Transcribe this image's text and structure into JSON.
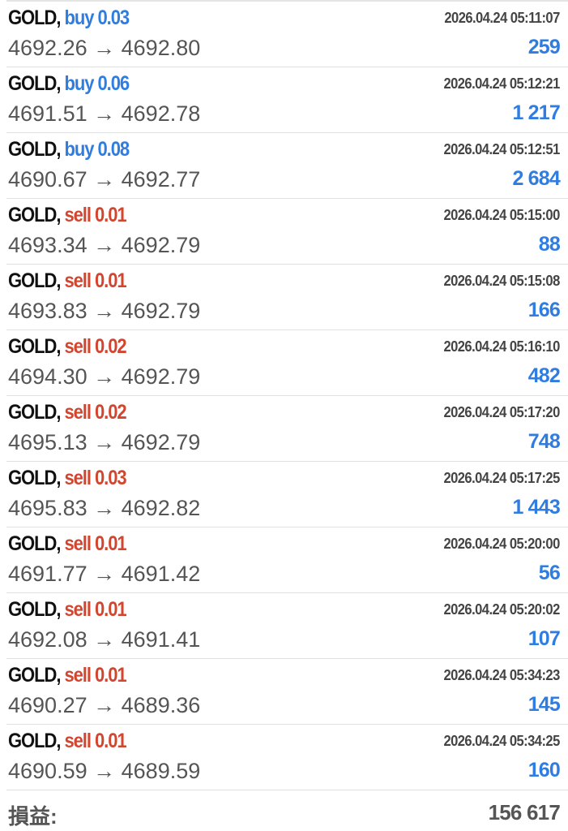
{
  "colors": {
    "buy": "#2f7de1",
    "sell": "#d2452f",
    "profit": "#2f7de1"
  },
  "trades": [
    {
      "symbol": "GOLD,",
      "type": "buy",
      "volume": "0.03",
      "time": "2026.04.24 05:11:07",
      "open": "4692.26",
      "close": "4692.80",
      "profit": "259"
    },
    {
      "symbol": "GOLD,",
      "type": "buy",
      "volume": "0.06",
      "time": "2026.04.24 05:12:21",
      "open": "4691.51",
      "close": "4692.78",
      "profit": "1 217"
    },
    {
      "symbol": "GOLD,",
      "type": "buy",
      "volume": "0.08",
      "time": "2026.04.24 05:12:51",
      "open": "4690.67",
      "close": "4692.77",
      "profit": "2 684"
    },
    {
      "symbol": "GOLD,",
      "type": "sell",
      "volume": "0.01",
      "time": "2026.04.24 05:15:00",
      "open": "4693.34",
      "close": "4692.79",
      "profit": "88"
    },
    {
      "symbol": "GOLD,",
      "type": "sell",
      "volume": "0.01",
      "time": "2026.04.24 05:15:08",
      "open": "4693.83",
      "close": "4692.79",
      "profit": "166"
    },
    {
      "symbol": "GOLD,",
      "type": "sell",
      "volume": "0.02",
      "time": "2026.04.24 05:16:10",
      "open": "4694.30",
      "close": "4692.79",
      "profit": "482"
    },
    {
      "symbol": "GOLD,",
      "type": "sell",
      "volume": "0.02",
      "time": "2026.04.24 05:17:20",
      "open": "4695.13",
      "close": "4692.79",
      "profit": "748"
    },
    {
      "symbol": "GOLD,",
      "type": "sell",
      "volume": "0.03",
      "time": "2026.04.24 05:17:25",
      "open": "4695.83",
      "close": "4692.82",
      "profit": "1 443"
    },
    {
      "symbol": "GOLD,",
      "type": "sell",
      "volume": "0.01",
      "time": "2026.04.24 05:20:00",
      "open": "4691.77",
      "close": "4691.42",
      "profit": "56"
    },
    {
      "symbol": "GOLD,",
      "type": "sell",
      "volume": "0.01",
      "time": "2026.04.24 05:20:02",
      "open": "4692.08",
      "close": "4691.41",
      "profit": "107"
    },
    {
      "symbol": "GOLD,",
      "type": "sell",
      "volume": "0.01",
      "time": "2026.04.24 05:34:23",
      "open": "4690.27",
      "close": "4689.36",
      "profit": "145"
    },
    {
      "symbol": "GOLD,",
      "type": "sell",
      "volume": "0.01",
      "time": "2026.04.24 05:34:25",
      "open": "4690.59",
      "close": "4689.59",
      "profit": "160"
    }
  ],
  "arrow": "→",
  "summary": {
    "label": "損益:",
    "value": "156 617"
  }
}
